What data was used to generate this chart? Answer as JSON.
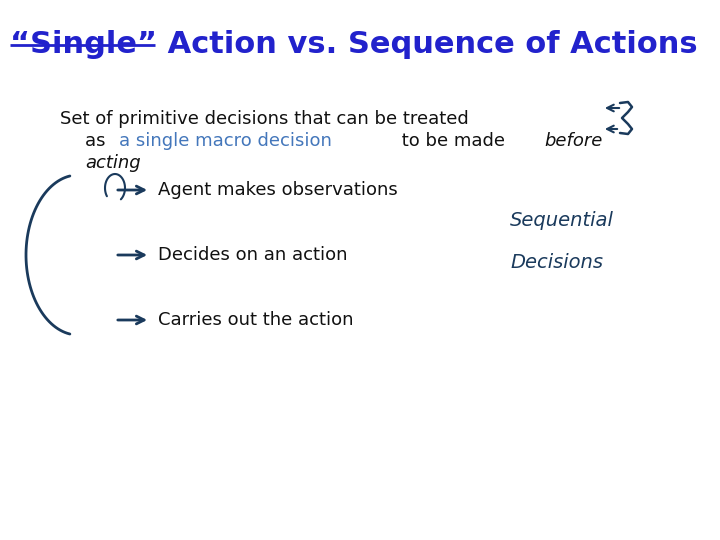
{
  "title": "“Single” Action vs. Sequence of Actions",
  "title_color": "#2222CC",
  "title_fontsize": 22,
  "underline_color": "#2222CC",
  "body_text_line1": "Set of primitive decisions that can be treated",
  "body_text_line2_part1": "as ",
  "body_text_line2_highlight": "a single macro decision",
  "body_text_line2_part2": " to be made ",
  "body_text_line2_italic": "before",
  "body_text_line3": "acting",
  "body_color": "#111111",
  "highlight_color": "#4477BB",
  "body_fontsize": 13,
  "bullet_items": [
    "Agent makes observations",
    "Decides on an action",
    "Carries out the action"
  ],
  "bullet_color": "#111111",
  "bullet_fontsize": 13,
  "arrow_color": "#1a3a5c",
  "background_color": "#ffffff",
  "seq_text1": "Sequential",
  "seq_text2": "Decisions"
}
